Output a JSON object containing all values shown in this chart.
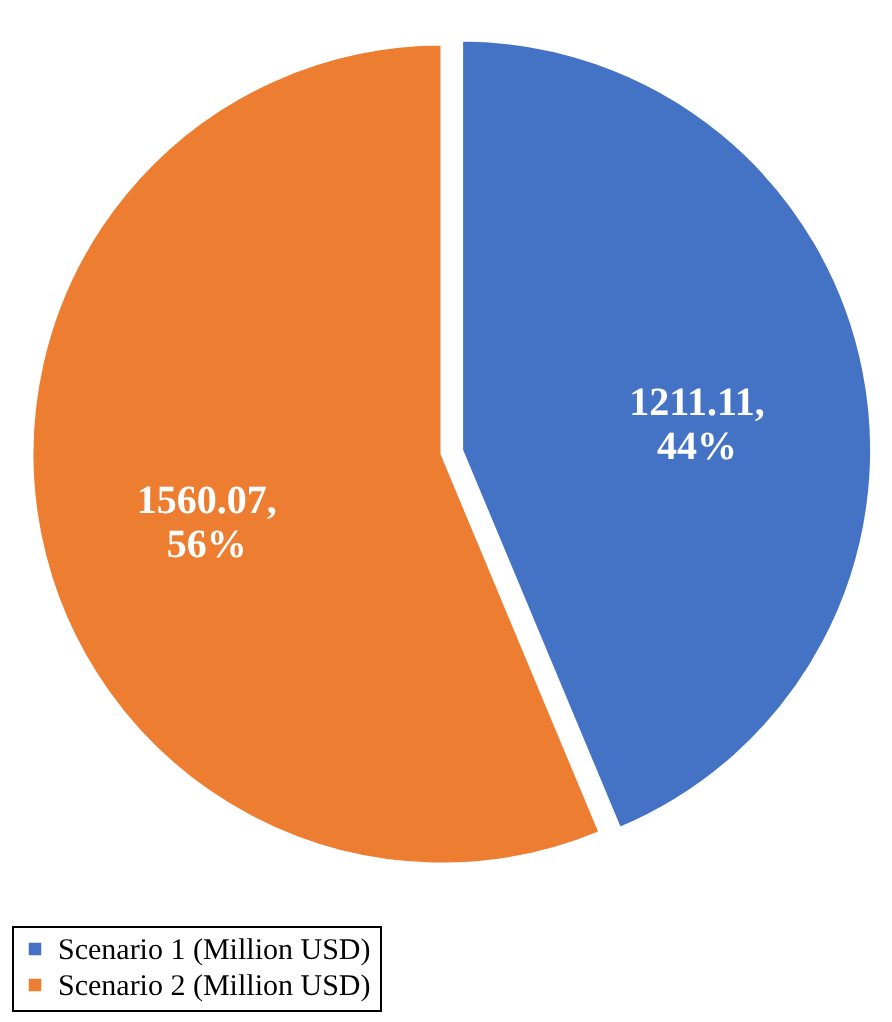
{
  "chart_data": {
    "type": "pie",
    "categories": [
      "Scenario 1 (Million USD)",
      "Scenario 2 (Million USD)"
    ],
    "values": [
      1211.11,
      1560.07
    ],
    "colors": [
      "#4472c4",
      "#ed7d31"
    ],
    "value_labels": [
      "1211.11, 44%",
      "1560.07, 56%"
    ],
    "legend": "bottom"
  }
}
